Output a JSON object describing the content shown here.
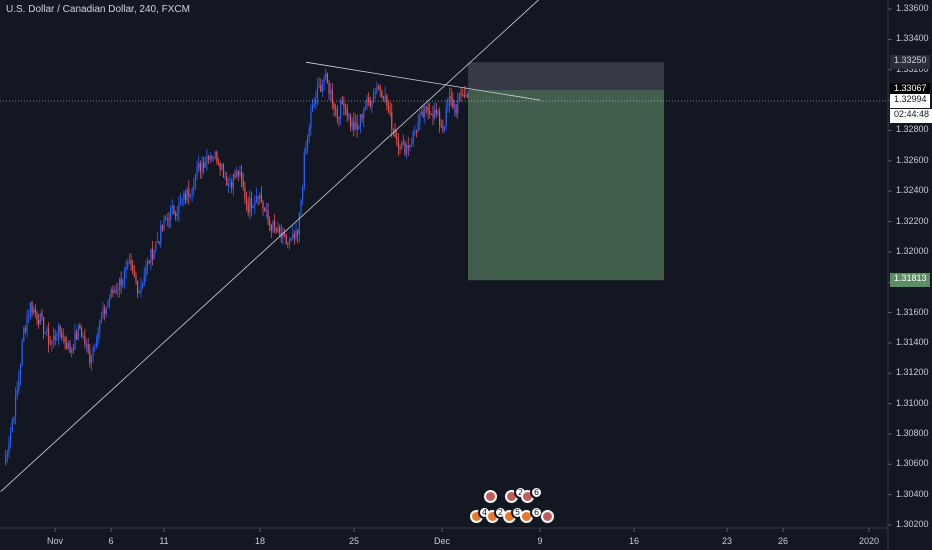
{
  "chart": {
    "title": "U.S. Dollar / Canadian Dollar, 240, FXCM",
    "price_scale": {
      "ticks": [
        "1.33600",
        "1.33400",
        "1.33200",
        "1.33000",
        "1.32800",
        "1.32600",
        "1.32400",
        "1.32200",
        "1.32000",
        "1.31800",
        "1.31600",
        "1.31400",
        "1.31200",
        "1.31000",
        "1.30800",
        "1.30600",
        "1.30400",
        "1.30200"
      ]
    },
    "time_scale": {
      "ticks": [
        "Nov",
        "6",
        "11",
        "18",
        "25",
        "Dec",
        "9",
        "16",
        "23",
        "26",
        "2020"
      ]
    },
    "price_tags": {
      "stop_loss": "1.33250",
      "entry": "1.33067",
      "last_price": "1.32994",
      "countdown": "02:44:48",
      "target": "1.31813"
    },
    "event_markers": {
      "row1": [
        "2",
        "6"
      ],
      "row2": [
        "4",
        "2",
        "5",
        "6"
      ]
    },
    "colors": {
      "background": "#131722",
      "up_candle": "#2962ff",
      "down_candle": "#ef5350",
      "profit_zone": "#4a6b54",
      "loss_zone": "#3a3e4a"
    }
  },
  "chart_data": {
    "type": "candlestick",
    "title": "U.S. Dollar / Canadian Dollar, 240, FXCM",
    "ylim": [
      1.3018,
      1.3366
    ],
    "y_ticks": [
      1.336,
      1.334,
      1.332,
      1.33,
      1.328,
      1.326,
      1.324,
      1.322,
      1.32,
      1.318,
      1.316,
      1.314,
      1.312,
      1.31,
      1.308,
      1.306,
      1.304,
      1.302
    ],
    "x_ticks": [
      "Nov",
      "6",
      "11",
      "18",
      "25",
      "Dec",
      "9",
      "16",
      "23",
      "26",
      "2020"
    ],
    "position": {
      "side": "short",
      "entry": 1.33067,
      "stop": 1.3325,
      "target": 1.31813
    },
    "last_price": 1.32994,
    "anchors": [
      {
        "x": 0,
        "y": 1.306
      },
      {
        "x": 4,
        "y": 1.3082
      },
      {
        "x": 8,
        "y": 1.3108
      },
      {
        "x": 12,
        "y": 1.3148
      },
      {
        "x": 16,
        "y": 1.3165
      },
      {
        "x": 22,
        "y": 1.3155
      },
      {
        "x": 28,
        "y": 1.314
      },
      {
        "x": 34,
        "y": 1.3148
      },
      {
        "x": 40,
        "y": 1.3135
      },
      {
        "x": 46,
        "y": 1.315
      },
      {
        "x": 52,
        "y": 1.313
      },
      {
        "x": 58,
        "y": 1.3152
      },
      {
        "x": 64,
        "y": 1.317
      },
      {
        "x": 70,
        "y": 1.318
      },
      {
        "x": 76,
        "y": 1.319
      },
      {
        "x": 82,
        "y": 1.3175
      },
      {
        "x": 88,
        "y": 1.3195
      },
      {
        "x": 94,
        "y": 1.321
      },
      {
        "x": 100,
        "y": 1.3225
      },
      {
        "x": 106,
        "y": 1.323
      },
      {
        "x": 112,
        "y": 1.324
      },
      {
        "x": 118,
        "y": 1.3255
      },
      {
        "x": 124,
        "y": 1.3265
      },
      {
        "x": 130,
        "y": 1.3262
      },
      {
        "x": 136,
        "y": 1.3245
      },
      {
        "x": 142,
        "y": 1.3252
      },
      {
        "x": 148,
        "y": 1.323
      },
      {
        "x": 154,
        "y": 1.324
      },
      {
        "x": 160,
        "y": 1.322
      },
      {
        "x": 166,
        "y": 1.3212
      },
      {
        "x": 172,
        "y": 1.3205
      },
      {
        "x": 178,
        "y": 1.321
      },
      {
        "x": 182,
        "y": 1.326
      },
      {
        "x": 186,
        "y": 1.329
      },
      {
        "x": 190,
        "y": 1.3305
      },
      {
        "x": 194,
        "y": 1.3315
      },
      {
        "x": 198,
        "y": 1.3305
      },
      {
        "x": 202,
        "y": 1.329
      },
      {
        "x": 206,
        "y": 1.33
      },
      {
        "x": 210,
        "y": 1.3285
      },
      {
        "x": 214,
        "y": 1.328
      },
      {
        "x": 218,
        "y": 1.3295
      },
      {
        "x": 222,
        "y": 1.33
      },
      {
        "x": 226,
        "y": 1.331
      },
      {
        "x": 230,
        "y": 1.3305
      },
      {
        "x": 234,
        "y": 1.3288
      },
      {
        "x": 238,
        "y": 1.3275
      },
      {
        "x": 242,
        "y": 1.3268
      },
      {
        "x": 246,
        "y": 1.3272
      },
      {
        "x": 250,
        "y": 1.3282
      },
      {
        "x": 254,
        "y": 1.329
      },
      {
        "x": 258,
        "y": 1.3295
      },
      {
        "x": 262,
        "y": 1.329
      },
      {
        "x": 266,
        "y": 1.3282
      },
      {
        "x": 270,
        "y": 1.33
      },
      {
        "x": 274,
        "y": 1.3295
      },
      {
        "x": 278,
        "y": 1.3305
      },
      {
        "x": 281,
        "y": 1.3302
      }
    ],
    "drawings": {
      "rising_trendline": [
        [
          -2,
          1.3042
        ],
        [
          300,
          1.338
        ]
      ],
      "falling_trendline": [
        [
          198,
          1.3325
        ],
        [
          340,
          1.33
        ]
      ]
    }
  }
}
